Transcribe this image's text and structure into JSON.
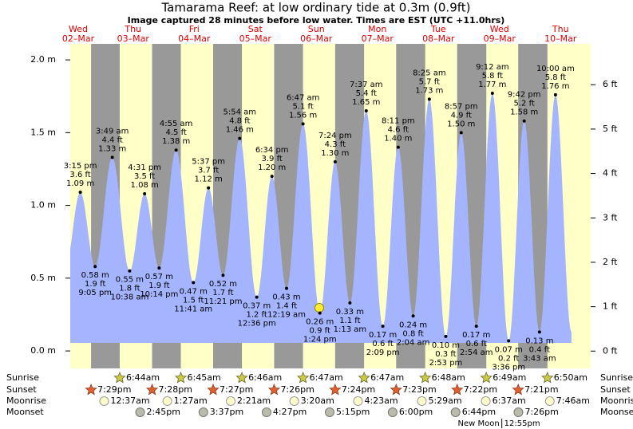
{
  "chart_data": {
    "type": "tide",
    "title": "Tamarama Reef: at low  ordinary tide at 0.3m (0.9ft)",
    "subtitle": "Image captured 28 minutes before low water. Times are EST (UTC +11.0hrs)",
    "weekdays": [
      "Wed",
      "Thu",
      "Fri",
      "Sat",
      "Sun",
      "Mon",
      "Tue",
      "Wed",
      "Thu"
    ],
    "dates": [
      "02–Mar",
      "03–Mar",
      "04–Mar",
      "05–Mar",
      "06–Mar",
      "07–Mar",
      "08–Mar",
      "09–Mar",
      "10–Mar"
    ],
    "ylim": [
      -0.12,
      2.11
    ],
    "yticks": [
      {
        "value": 0,
        "label": "0.0 m"
      },
      {
        "value": 0.5,
        "label": "0.5 m"
      },
      {
        "value": 1,
        "label": "1.0 m"
      },
      {
        "value": 1.5,
        "label": "1.5 m"
      },
      {
        "value": 2,
        "label": "2.0 m"
      }
    ],
    "y2lim": [
      -0.39,
      6.92
    ],
    "y2ticks": [
      {
        "value": 0,
        "label": "0 ft"
      },
      {
        "value": 1,
        "label": "1 ft"
      },
      {
        "value": 2,
        "label": "2 ft"
      },
      {
        "value": 3,
        "label": "3 ft"
      },
      {
        "value": 4,
        "label": "4 ft"
      },
      {
        "value": 5,
        "label": "5 ft"
      },
      {
        "value": 6,
        "label": "6 ft"
      }
    ],
    "colors": {
      "day": "#ffffc8",
      "night": "#999999",
      "water": "#a4b4ff"
    },
    "extremes": {
      "times": [
        "3:15 pm",
        "9:05 pm",
        "3:49 am",
        "10:38 am",
        "4:31 pm",
        "10:14 pm",
        "4:55 am",
        "11:41 am",
        "5:37 pm",
        "11:21 pm",
        "5:54 am",
        "12:36 pm",
        "6:34 pm",
        "12:19 am",
        "6:47 am",
        "1:24 pm",
        "7:24 pm",
        "1:13 am",
        "7:37 am",
        "2:09 pm",
        "8:11 pm",
        "2:04 am",
        "8:25 am",
        "2:53 pm",
        "8:57 pm",
        "2:54 am",
        "9:12 am",
        "3:36 pm",
        "9:42 pm",
        "3:43 am",
        "10:00 am"
      ],
      "values": [
        1.09,
        0.58,
        1.33,
        0.55,
        1.08,
        0.57,
        1.38,
        0.47,
        1.12,
        0.52,
        1.46,
        0.37,
        1.2,
        0.43,
        1.56,
        0.26,
        1.3,
        0.33,
        1.65,
        0.17,
        1.4,
        0.24,
        1.73,
        0.1,
        1.5,
        0.17,
        1.77,
        0.07,
        1.58,
        0.13,
        1.76
      ],
      "value_labels": [
        "1.09 m",
        "0.58 m",
        "1.33 m",
        "0.55 m",
        "1.08 m",
        "0.57 m",
        "1.38 m",
        "0.47 m",
        "1.12 m",
        "0.52 m",
        "1.46 m",
        "0.37 m",
        "1.20 m",
        "0.43 m",
        "1.56 m",
        "0.26 m",
        "1.30 m",
        "0.33 m",
        "1.65 m",
        "0.17 m",
        "1.40 m",
        "0.24 m",
        "1.73 m",
        "0.10 m",
        "1.50 m",
        "0.17 m",
        "1.77 m",
        "0.07 m",
        "1.58 m",
        "0.13 m",
        "1.76 m"
      ],
      "feet_labels": [
        "3.6 ft",
        "1.9 ft",
        "4.4 ft",
        "1.8 ft",
        "3.5 ft",
        "1.9 ft",
        "4.5 ft",
        "1.5 ft",
        "3.7 ft",
        "1.7 ft",
        "4.8 ft",
        "1.2 ft",
        "3.9 ft",
        "1.4 ft",
        "5.1 ft",
        "0.9 ft",
        "4.3 ft",
        "1.1 ft",
        "5.4 ft",
        "0.6 ft",
        "4.6 ft",
        "0.8 ft",
        "5.7 ft",
        "0.3 ft",
        "4.9 ft",
        "0.6 ft",
        "5.8 ft",
        "0.2 ft",
        "5.2 ft",
        "0.4 ft",
        "5.8 ft"
      ]
    },
    "row_labels": [
      "Sunrise",
      "Sunset",
      "Moonrise",
      "Moonset"
    ],
    "sunrise": [
      null,
      "6:44am",
      "6:45am",
      "6:46am",
      "6:47am",
      "6:47am",
      "6:48am",
      "6:49am",
      "6:50am"
    ],
    "sunset": [
      "7:29pm",
      "7:28pm",
      "7:27pm",
      "7:26pm",
      "7:24pm",
      "7:23pm",
      "7:22pm",
      "7:21pm",
      null
    ],
    "moonrise": [
      null,
      "12:37am",
      "1:27am",
      "2:21am",
      "3:20am",
      "4:23am",
      "5:29am",
      "6:37am",
      "7:46am"
    ],
    "moonset": [
      null,
      "2:45pm",
      "3:37pm",
      "4:27pm",
      "5:15pm",
      "6:00pm",
      "6:44pm",
      "7:26pm",
      null
    ],
    "moon_phase_name": "New Moon",
    "moon_phase": [
      null,
      null,
      null,
      null,
      null,
      null,
      null,
      "12:55pm",
      null
    ]
  }
}
